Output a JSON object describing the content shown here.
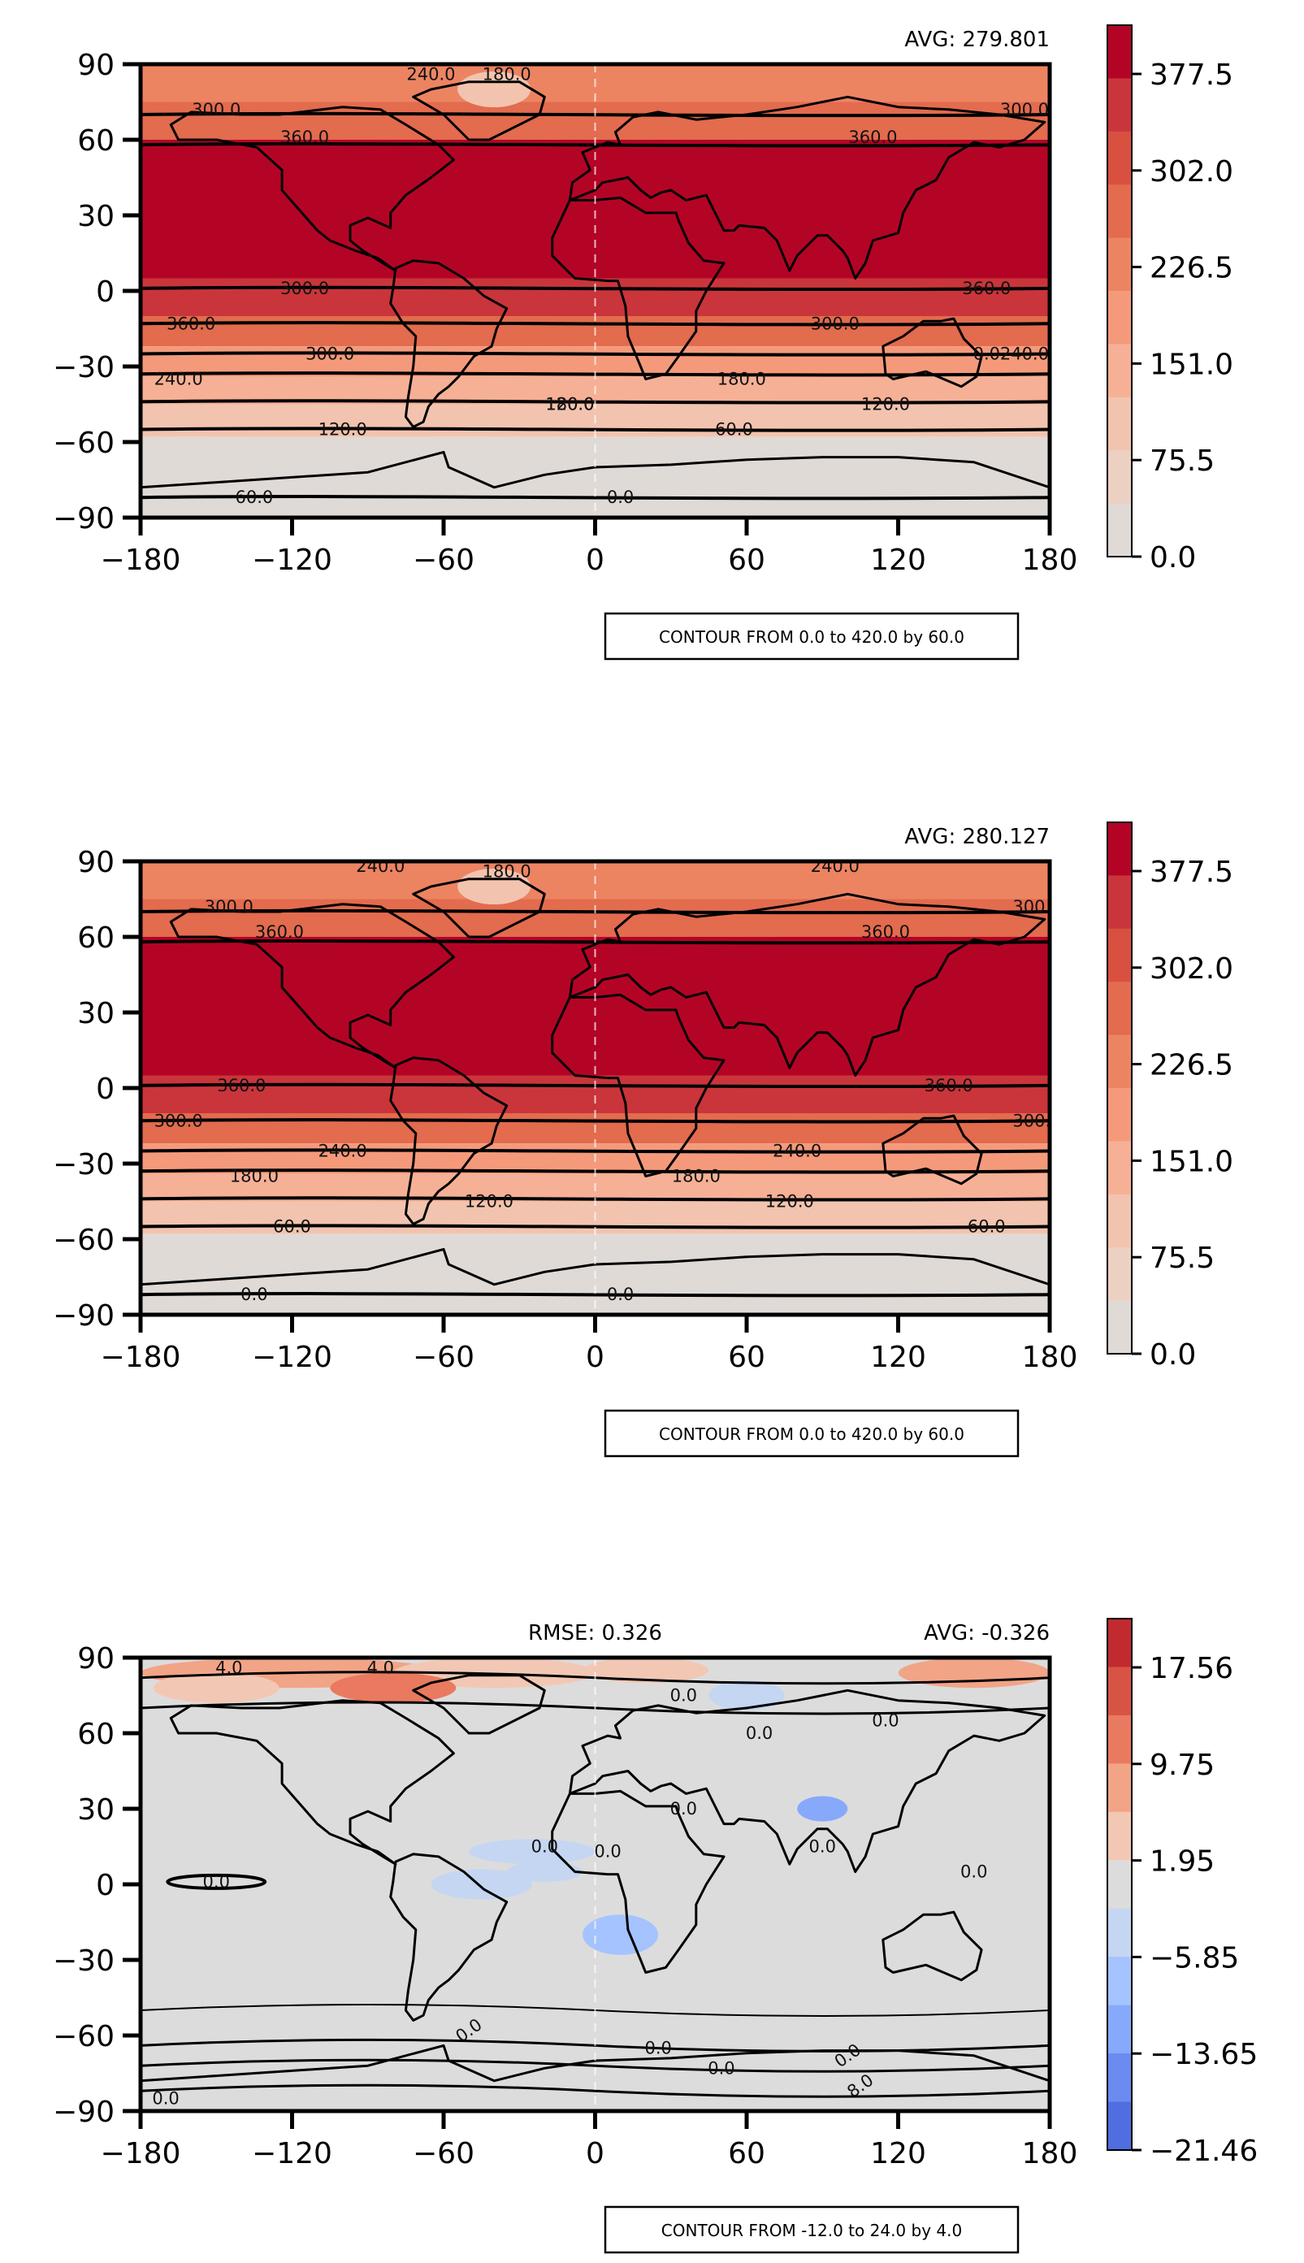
{
  "x_ticks": [
    "−180",
    "−120",
    "−60",
    "0",
    "60",
    "120",
    "180"
  ],
  "y_ticks": [
    "90",
    "60",
    "30",
    "0",
    "−30",
    "−60",
    "−90"
  ],
  "panels": [
    {
      "avg_text": "AVG: 279.801",
      "rmse_text": "",
      "note": "CONTOUR FROM 0.0 to 420.0 by 60.0",
      "colorbar_ticks": [
        "377.5",
        "302.0",
        "226.5",
        "151.0",
        "75.5",
        "0.0"
      ],
      "colorbar_colors": [
        "#b40426",
        "#c9353a",
        "#d8503f",
        "#e36b4e",
        "#ec8462",
        "#f49a7b",
        "#f6b095",
        "#f2c4af",
        "#ecd0c2",
        "#e0dad6"
      ],
      "contour_labels": [
        "240.0",
        "180.0",
        "300.0",
        "300.0",
        "360.0",
        "360.0",
        "300.0",
        "360.0",
        "360.0",
        "300.0",
        "300.0",
        "240.0",
        "240.0",
        "180.0",
        "180.0",
        "120.0",
        "120.0",
        "120.0",
        "60.0",
        "60.0",
        "0.0",
        "0.0"
      ]
    },
    {
      "avg_text": "AVG: 280.127",
      "rmse_text": "",
      "note": "CONTOUR FROM 0.0 to 420.0 by 60.0",
      "colorbar_ticks": [
        "377.5",
        "302.0",
        "226.5",
        "151.0",
        "75.5",
        "0.0"
      ],
      "colorbar_colors": [
        "#b40426",
        "#c9353a",
        "#d8503f",
        "#e36b4e",
        "#ec8462",
        "#f49a7b",
        "#f6b095",
        "#f2c4af",
        "#ecd0c2",
        "#e0dad6"
      ],
      "contour_labels": [
        "240.0",
        "180.0",
        "240.0",
        "300.0",
        "300.0",
        "360.0",
        "360.0",
        "360.0",
        "360.0",
        "300.0",
        "300.0",
        "240.0",
        "240.0",
        "180.0",
        "180.0",
        "120.0",
        "120.0",
        "60.0",
        "60.0",
        "0.0",
        "0.0"
      ]
    },
    {
      "avg_text": "AVG: -0.326",
      "rmse_text": "RMSE: 0.326",
      "note": "CONTOUR FROM -12.0 to 24.0 by 4.0",
      "colorbar_ticks": [
        "17.56",
        "9.75",
        "1.95",
        "−5.85",
        "−13.65",
        "−21.46"
      ],
      "colorbar_colors": [
        "#c12b30",
        "#d75445",
        "#e97a5f",
        "#f2a486",
        "#f2c8b4",
        "#dddcdc",
        "#c5d6f2",
        "#a5c3fe",
        "#86a9fb",
        "#6a8bef",
        "#4f6ee0"
      ],
      "contour_labels": [
        "4.0",
        "4.0",
        "0.0",
        "0.0",
        "0.0",
        "0.0",
        "0.0",
        "0.0",
        "0.0",
        "0.0",
        "0.0",
        "0.0",
        "0.0",
        "0.0",
        "0.0",
        "0.0",
        "8.0"
      ]
    }
  ]
}
